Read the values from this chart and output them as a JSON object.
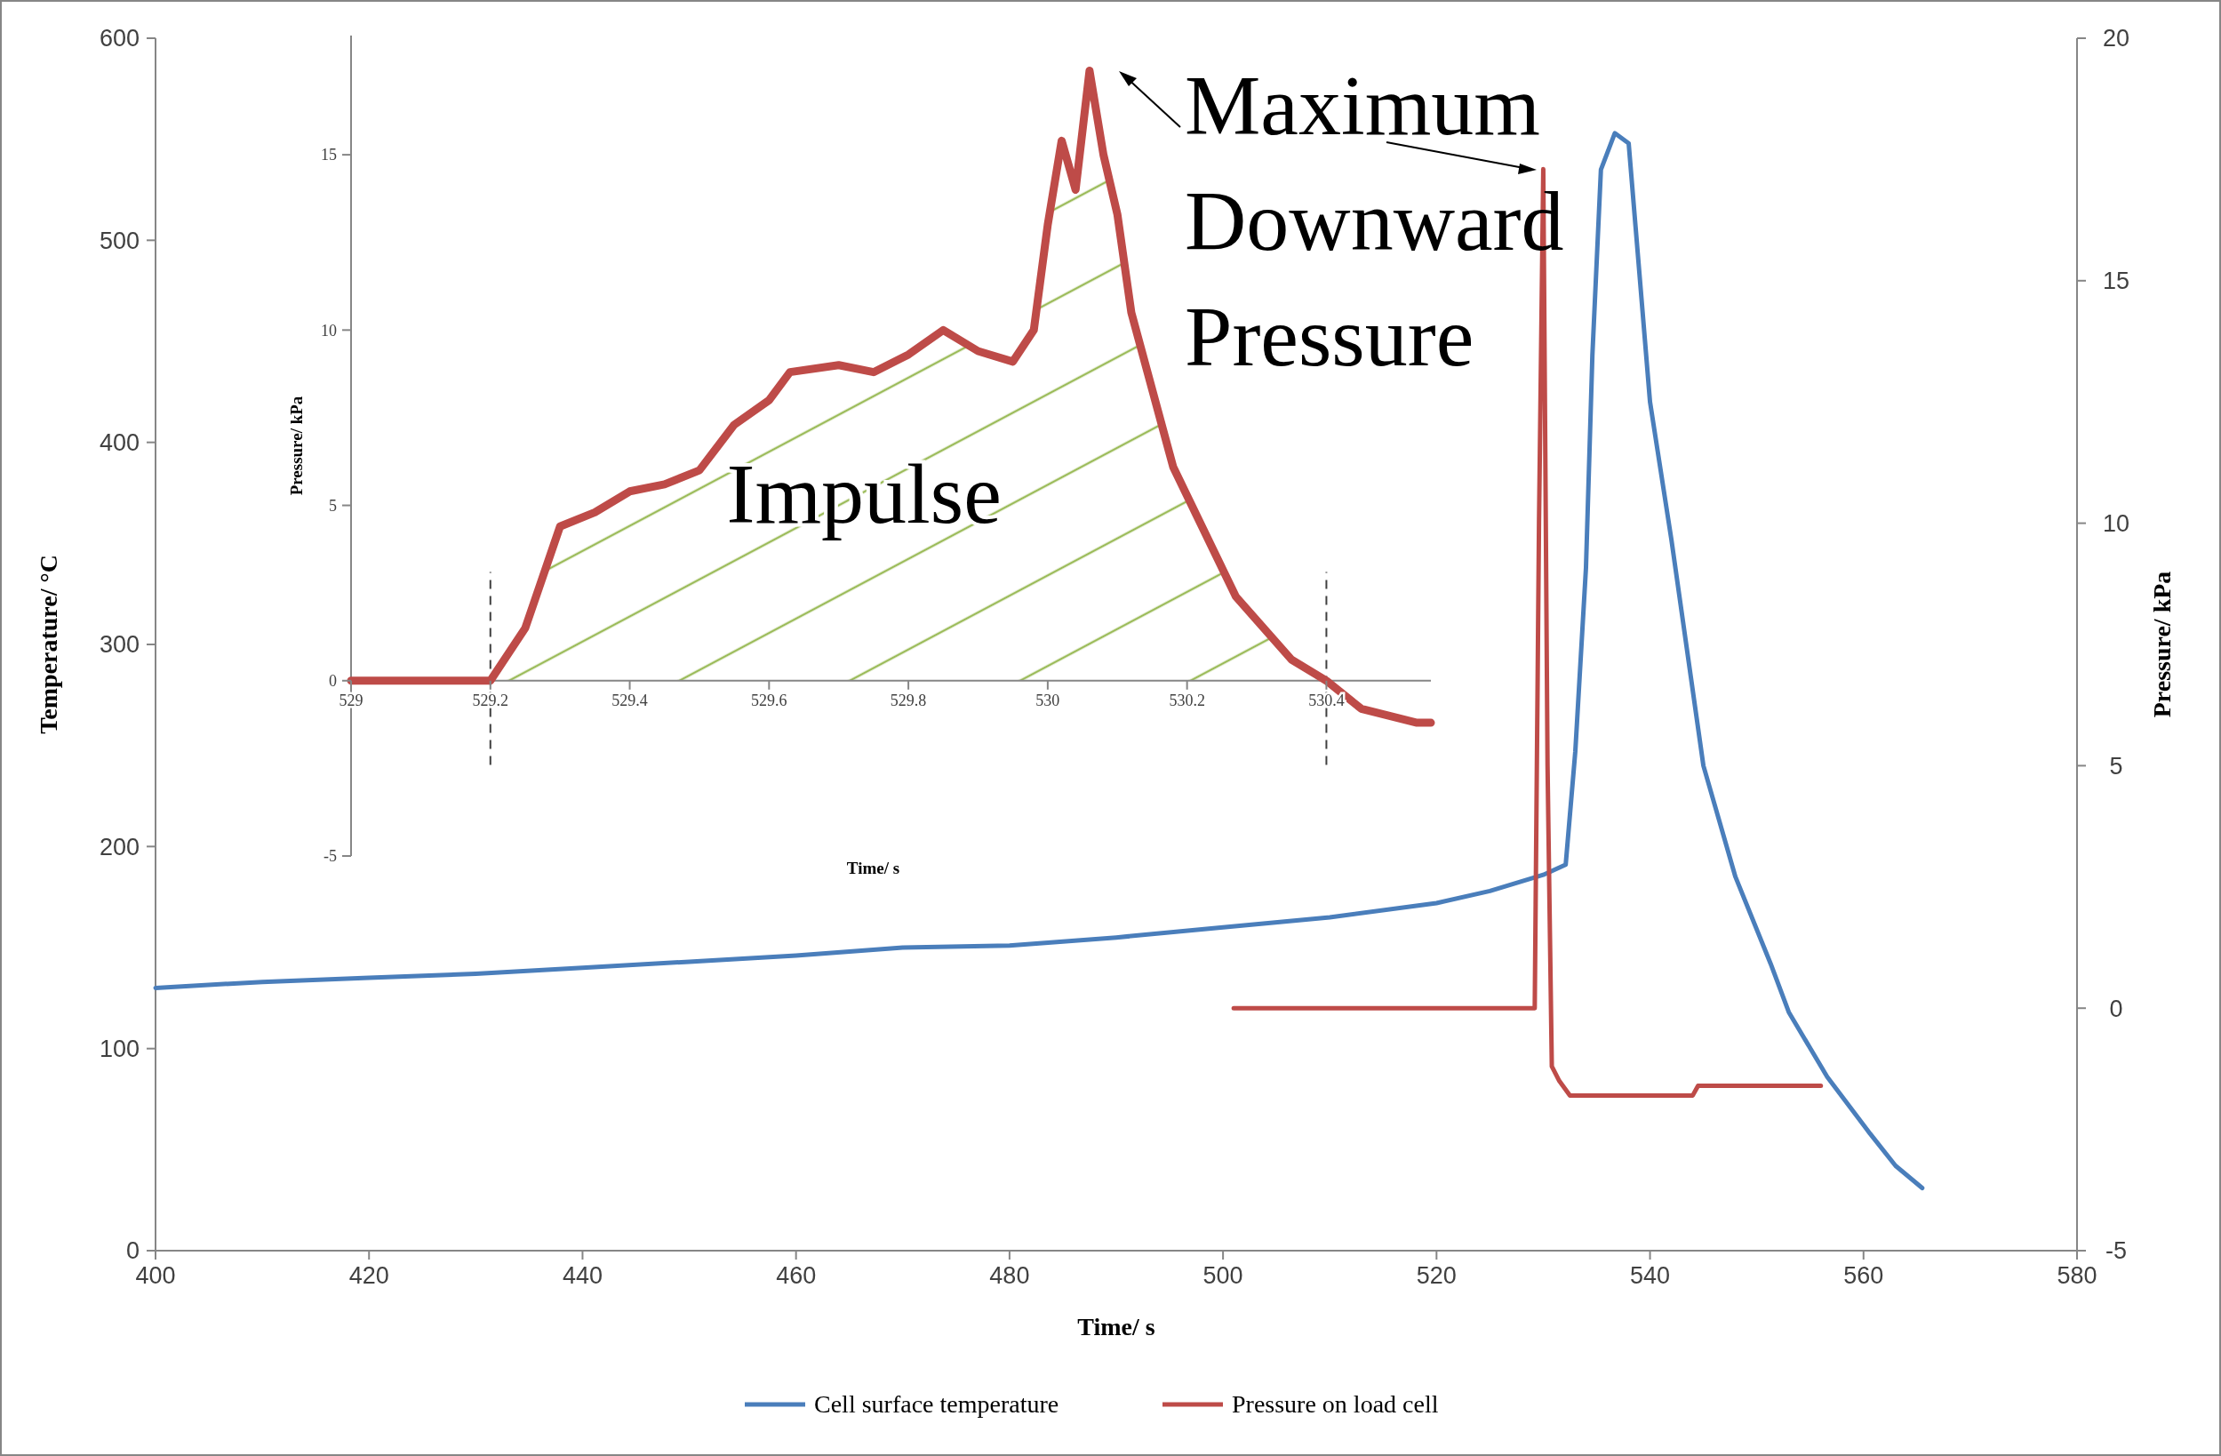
{
  "chart_data": [
    {
      "type": "line",
      "xlabel": "Time/ s",
      "ylabel": "Temperature/ °C",
      "y2label": "Pressure/ kPa",
      "xlim": [
        400,
        580
      ],
      "xticks": [
        400,
        420,
        440,
        460,
        480,
        500,
        520,
        540,
        560,
        580
      ],
      "ylim": [
        0,
        600
      ],
      "yticks": [
        0,
        100,
        200,
        300,
        400,
        500,
        600
      ],
      "y2lim": [
        -5,
        20
      ],
      "y2ticks": [
        -5,
        0,
        5,
        10,
        15,
        20
      ],
      "legend": "bottom",
      "annotations": [
        "Maximum Downward Pressure"
      ],
      "series": [
        {
          "name": "Cell surface temperature",
          "color": "#4a7ebb",
          "x": [
            400,
            410,
            420,
            430,
            440,
            450,
            460,
            470,
            480,
            490,
            500,
            510,
            520,
            525,
            530,
            532.1,
            533,
            534,
            534.6,
            535.4,
            536.7,
            538,
            540,
            542,
            545,
            548,
            551.3,
            553,
            556.6,
            560.6,
            563,
            565.5
          ],
          "values": [
            130,
            133,
            135,
            137,
            140,
            143,
            146,
            150,
            151,
            155,
            160,
            165,
            172,
            178,
            186,
            191,
            247,
            338,
            443,
            535,
            553,
            548,
            420,
            352,
            240,
            185,
            142,
            118,
            86,
            58,
            42,
            31
          ]
        },
        {
          "name": "Pressure on load cell",
          "color": "#be4b48",
          "axis": "y2",
          "x": [
            501,
            529.2,
            529.6,
            530,
            530.4,
            530.8,
            531.5,
            532.5,
            544,
            544.5,
            556
          ],
          "values": [
            0,
            0,
            10,
            17.3,
            5,
            -1.2,
            -1.5,
            -1.8,
            -1.8,
            -1.6,
            -1.6
          ]
        }
      ]
    },
    {
      "type": "line",
      "xlabel": "Time/ s",
      "ylabel": "Pressure/ kPa",
      "xlim": [
        529,
        530.55
      ],
      "xticks": [
        529,
        529.2,
        529.4,
        529.6,
        529.8,
        530,
        530.2,
        530.4
      ],
      "ylim": [
        -5,
        18.4
      ],
      "yticks": [
        -5,
        0,
        5,
        10,
        15
      ],
      "bands": [
        {
          "axis": "x",
          "from": 529.2,
          "to": 530.4,
          "label": "Impulse",
          "color": "#9bbb59"
        }
      ],
      "ref_lines": [
        {
          "axis": "x",
          "value": 529.2,
          "color": "#404040",
          "line_style": "dashed"
        },
        {
          "axis": "x",
          "value": 530.4,
          "color": "#404040",
          "line_style": "dashed"
        }
      ],
      "series": [
        {
          "color": "#be4b48",
          "x": [
            529,
            529.2,
            529.25,
            529.3,
            529.35,
            529.4,
            529.45,
            529.5,
            529.55,
            529.6,
            529.63,
            529.7,
            529.75,
            529.8,
            529.85,
            529.9,
            529.95,
            529.98,
            530,
            530.02,
            530.04,
            530.06,
            530.08,
            530.1,
            530.12,
            530.18,
            530.27,
            530.35,
            530.4,
            530.45,
            530.53,
            530.55
          ],
          "values": [
            0,
            0,
            1.5,
            4.4,
            4.8,
            5.4,
            5.6,
            6,
            7.3,
            8,
            8.8,
            9,
            8.8,
            9.3,
            10,
            9.4,
            9.1,
            10,
            13,
            15.4,
            14,
            17.4,
            15,
            13.3,
            10.5,
            6.1,
            2.4,
            0.6,
            0,
            -0.8,
            -1.2,
            -1.2
          ]
        }
      ]
    }
  ]
}
